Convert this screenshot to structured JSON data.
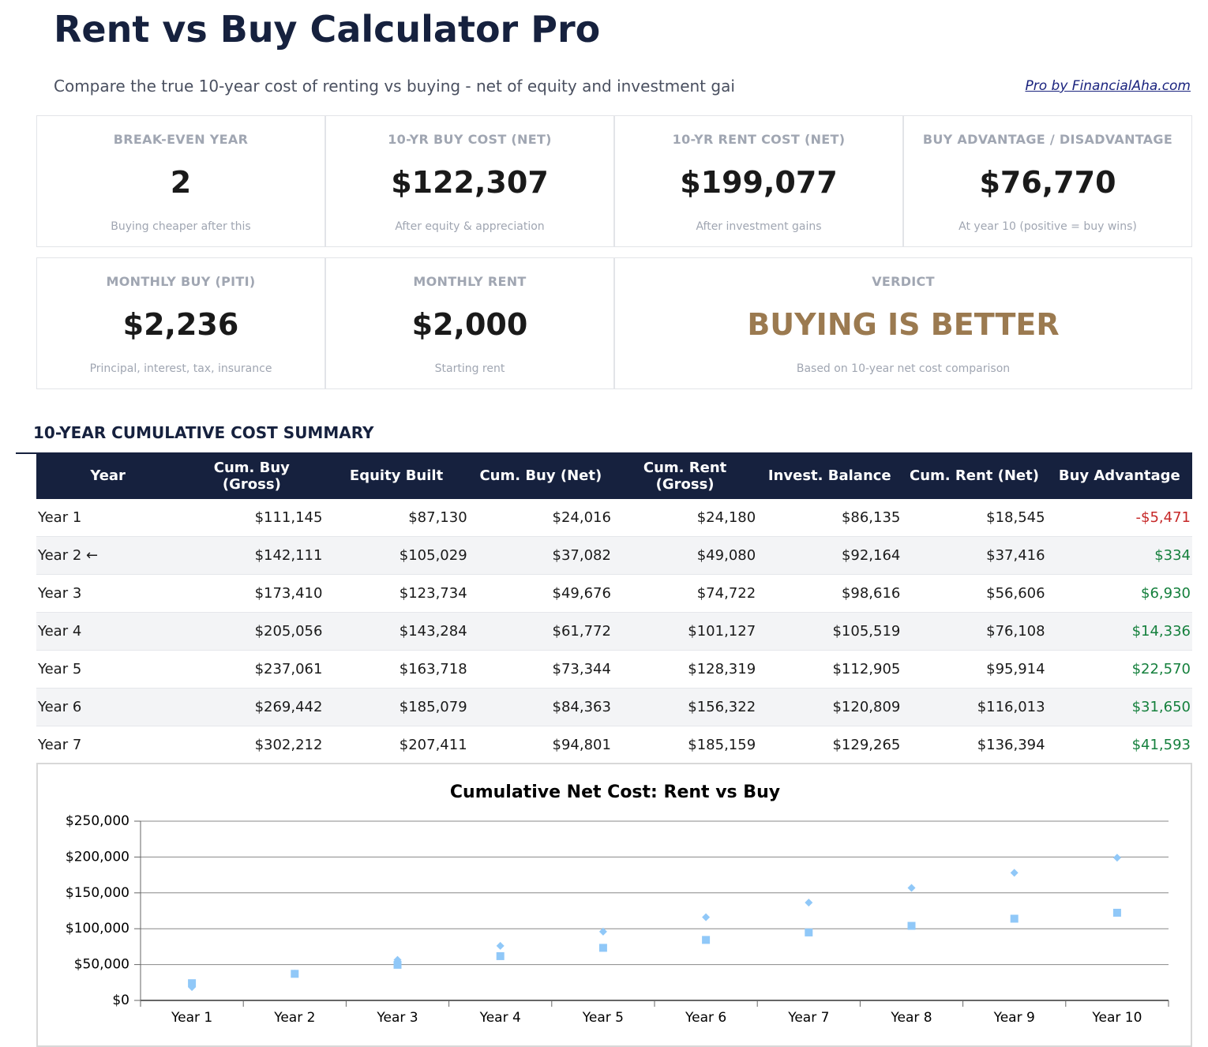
{
  "header": {
    "title": "Rent vs Buy Calculator Pro",
    "subtitle": "Compare the true 10-year cost of renting vs buying - net of equity and investment gai",
    "link": "Pro by FinancialAha.com"
  },
  "cards": [
    {
      "label": "BREAK-EVEN YEAR",
      "value": "2",
      "note": "Buying cheaper after this"
    },
    {
      "label": "10-YR BUY COST (NET)",
      "value": "$122,307",
      "note": "After equity & appreciation"
    },
    {
      "label": "10-YR RENT COST (NET)",
      "value": "$199,077",
      "note": "After investment gains"
    },
    {
      "label": "BUY ADVANTAGE / DISADVANTAGE",
      "value": "$76,770",
      "note": "At year 10 (positive = buy wins)"
    },
    {
      "label": "MONTHLY BUY (PITI)",
      "value": "$2,236",
      "note": "Principal, interest, tax, insurance"
    },
    {
      "label": "MONTHLY RENT",
      "value": "$2,000",
      "note": "Starting rent"
    },
    {
      "label": "VERDICT",
      "value": "BUYING IS BETTER",
      "note": "Based on 10-year net cost comparison",
      "color": "#9b7a50"
    }
  ],
  "section_title": "10-YEAR CUMULATIVE COST SUMMARY",
  "table": {
    "header": [
      "Year",
      "Cum. Buy (Gross)",
      "Equity Built",
      "Cum. Buy (Net)",
      "Cum. Rent (Gross)",
      "Invest. Balance",
      "Cum. Rent (Net)",
      "Buy Advantage"
    ],
    "rows": [
      [
        "Year 1",
        "$111,145",
        "$87,130",
        "$24,016",
        "$24,180",
        "$86,135",
        "$18,545",
        "-$5,471"
      ],
      [
        "Year 2 ←",
        "$142,111",
        "$105,029",
        "$37,082",
        "$49,080",
        "$92,164",
        "$37,416",
        "$334"
      ],
      [
        "Year 3",
        "$173,410",
        "$123,734",
        "$49,676",
        "$74,722",
        "$98,616",
        "$56,606",
        "$6,930"
      ],
      [
        "Year 4",
        "$205,056",
        "$143,284",
        "$61,772",
        "$101,127",
        "$105,519",
        "$76,108",
        "$14,336"
      ],
      [
        "Year 5",
        "$237,061",
        "$163,718",
        "$73,344",
        "$128,319",
        "$112,905",
        "$95,914",
        "$22,570"
      ],
      [
        "Year 6",
        "$269,442",
        "$185,079",
        "$84,363",
        "$156,322",
        "$120,809",
        "$116,013",
        "$31,650"
      ],
      [
        "Year 7",
        "$302,212",
        "$207,411",
        "$94,801",
        "$185,159",
        "$129,265",
        "$136,394",
        "$41,593"
      ]
    ]
  },
  "chart_data": {
    "type": "scatter",
    "title": "Cumulative Net Cost: Rent vs Buy",
    "categories": [
      "Year 1",
      "Year 2",
      "Year 3",
      "Year 4",
      "Year 5",
      "Year 6",
      "Year 7",
      "Year 8",
      "Year 9",
      "Year 10"
    ],
    "series": [
      {
        "color": "#90c8f8",
        "marker": "diamond",
        "values": [
          18545,
          37416,
          56606,
          76108,
          95914,
          116013,
          136394,
          157000,
          178000,
          199077
        ]
      },
      {
        "color": "#90c8f8",
        "marker": "square",
        "values": [
          24016,
          37082,
          49676,
          61772,
          73344,
          84363,
          94801,
          104000,
          114000,
          122307
        ]
      }
    ],
    "ylim": [
      0,
      250000
    ],
    "yticks": [
      {
        "value": 0,
        "label": "$0"
      },
      {
        "value": 50000,
        "label": "$50,000"
      },
      {
        "value": 100000,
        "label": "$100,000"
      },
      {
        "value": 150000,
        "label": "$150,000"
      },
      {
        "value": 200000,
        "label": "$200,000"
      },
      {
        "value": 250000,
        "label": "$250,000"
      }
    ],
    "grid": true
  }
}
